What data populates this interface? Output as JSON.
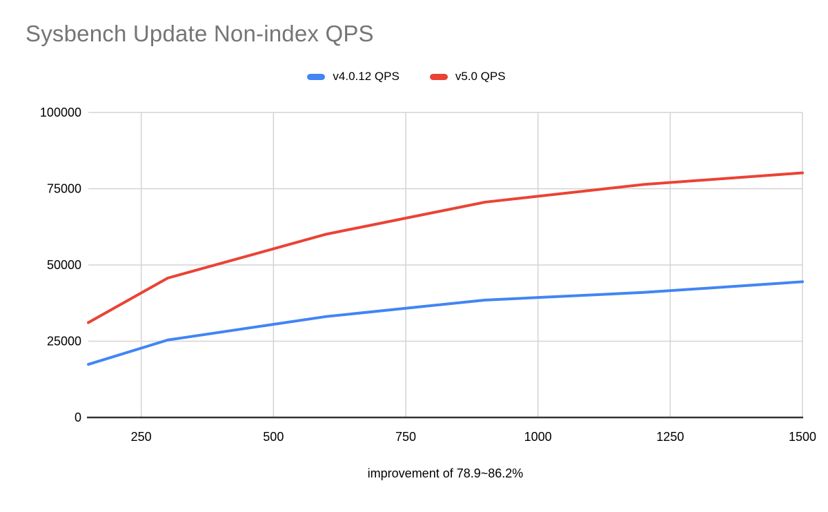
{
  "title": "Sysbench Update Non-index QPS",
  "legend": {
    "items": [
      {
        "label": "v4.0.12 QPS",
        "color": "#4285f4"
      },
      {
        "label": "v5.0 QPS",
        "color": "#ea4335"
      }
    ]
  },
  "caption": "improvement of 78.9~86.2%",
  "chart_data": {
    "type": "line",
    "title": "Sysbench Update Non-index QPS",
    "x": [
      150,
      300,
      600,
      900,
      1200,
      1500
    ],
    "series": [
      {
        "name": "v4.0.12 QPS",
        "color": "#4285f4",
        "values": [
          17400,
          25400,
          33100,
          38500,
          41000,
          44500
        ]
      },
      {
        "name": "v5.0 QPS",
        "color": "#ea4335",
        "values": [
          31100,
          45700,
          60100,
          70600,
          76400,
          80200
        ]
      }
    ],
    "xlim": [
      150,
      1500
    ],
    "ylim": [
      0,
      100000
    ],
    "x_ticks": [
      250,
      500,
      750,
      1000,
      1250,
      1500
    ],
    "y_ticks": [
      0,
      25000,
      50000,
      75000,
      100000
    ],
    "grid": true,
    "legend_position": "top",
    "caption": "improvement of 78.9~86.2%",
    "colors": {
      "grid_line": "#d3d3d3",
      "axis_line": "#333333",
      "tick_label": "#000000",
      "title": "#757575"
    }
  }
}
